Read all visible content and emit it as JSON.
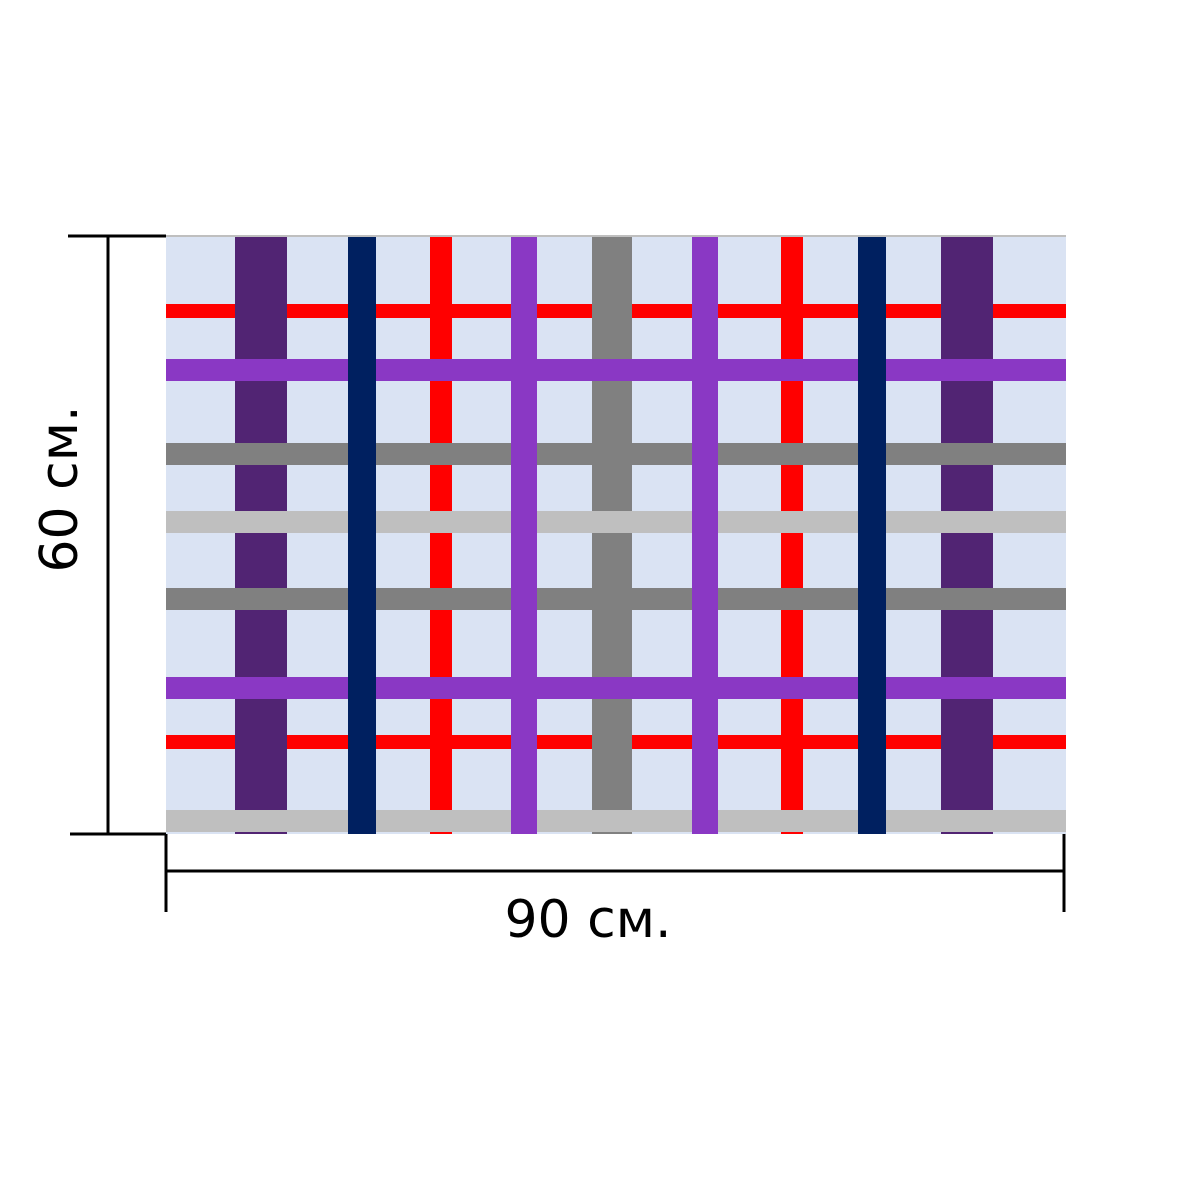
{
  "dimensions": {
    "width_label": "90 см.",
    "height_label": "60 см."
  },
  "pattern": {
    "name": "plaid-tablecloth",
    "background_color": "#DAE3F3",
    "vertical_stripes": [
      {
        "color": "#512473",
        "style": "dark-violet"
      },
      {
        "color": "#002060",
        "style": "navy"
      },
      {
        "color": "#FF0000",
        "style": "red"
      },
      {
        "color": "#8A38C4",
        "style": "violet"
      },
      {
        "color": "#808080",
        "style": "gray"
      },
      {
        "color": "#8A38C4",
        "style": "violet"
      },
      {
        "color": "#FF0000",
        "style": "red"
      },
      {
        "color": "#002060",
        "style": "navy"
      },
      {
        "color": "#512473",
        "style": "dark-violet"
      }
    ],
    "horizontal_stripes": [
      {
        "color": "#FF0000",
        "style": "red"
      },
      {
        "color": "#8A38C4",
        "style": "violet"
      },
      {
        "color": "#808080",
        "style": "gray"
      },
      {
        "color": "#BFBFBF",
        "style": "light-gray"
      },
      {
        "color": "#808080",
        "style": "gray"
      },
      {
        "color": "#8A38C4",
        "style": "violet"
      },
      {
        "color": "#FF0000",
        "style": "red"
      },
      {
        "color": "#BFBFBF",
        "style": "light-gray"
      }
    ]
  },
  "dimension_line_color": "#000000"
}
